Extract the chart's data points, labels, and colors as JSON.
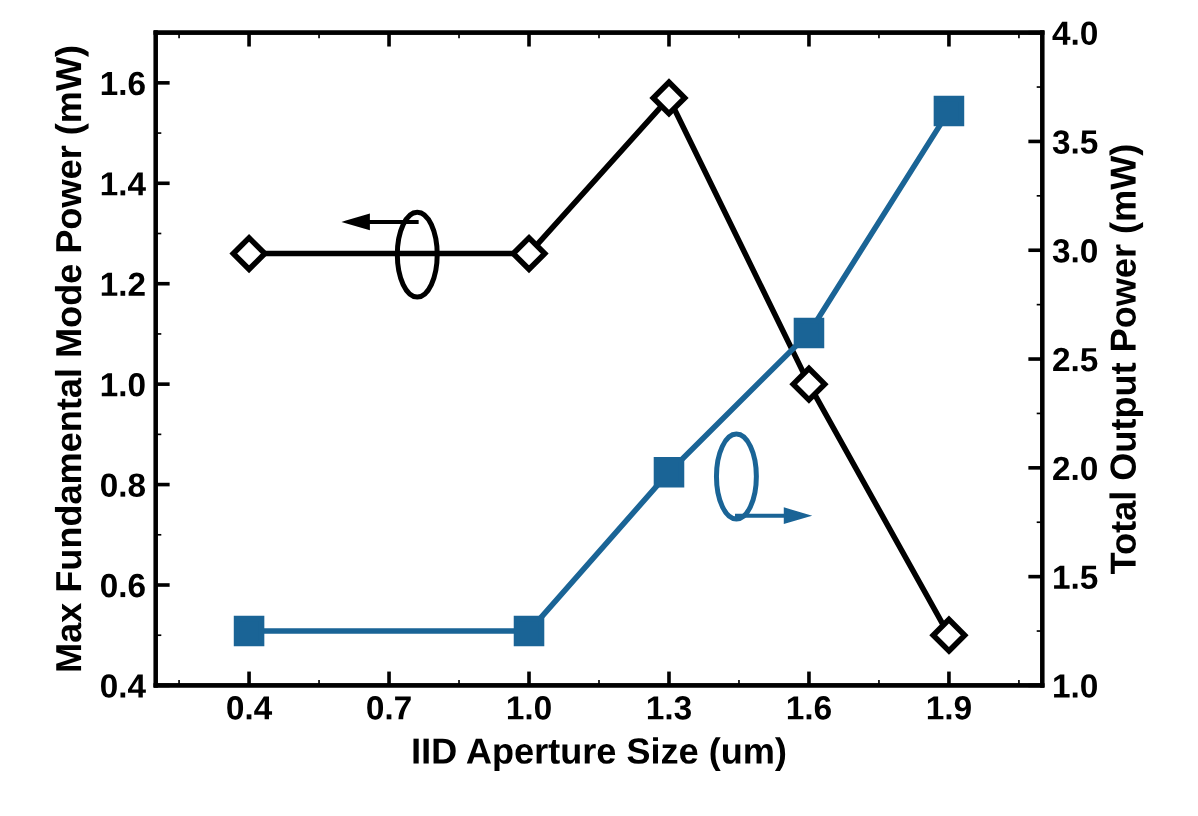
{
  "chart_data": {
    "type": "line",
    "xlabel": "IID Aperture Size (um)",
    "ylabel": "Max Fundamental Mode Power (mW)",
    "y2label": "Total Output Power (mW)",
    "x": [
      0.4,
      1.0,
      1.3,
      1.6,
      1.9
    ],
    "series": [
      {
        "color": "#000000",
        "marker": "diamond",
        "values": [
          1.26,
          1.26,
          1.57,
          1.0,
          0.5
        ]
      },
      {
        "color": "#1a6496",
        "marker": "square",
        "axis": "y2",
        "values": [
          1.25,
          1.25,
          1.98,
          2.62,
          3.64
        ]
      }
    ],
    "xlim": [
      0.2,
      2.1
    ],
    "xticks": [
      0.4,
      0.7,
      {
        "value": 1,
        "label": "1.0"
      },
      1.3,
      1.6,
      1.9
    ],
    "ylim": [
      0.4,
      1.7
    ],
    "yticks": [
      0.4,
      0.6,
      0.8,
      {
        "value": 1,
        "label": "1.0"
      },
      1.2,
      1.4,
      1.6
    ],
    "y2lim": [
      1.0,
      4.0
    ],
    "y2ticks": [
      {
        "value": 1,
        "label": "1.0"
      },
      1.5,
      {
        "value": 2,
        "label": "2.0"
      },
      2.5,
      {
        "value": 3,
        "label": "3.0"
      },
      3.5,
      {
        "value": 4,
        "label": "4.0"
      }
    ],
    "line_style": "solid",
    "grid": false,
    "legend": false
  }
}
